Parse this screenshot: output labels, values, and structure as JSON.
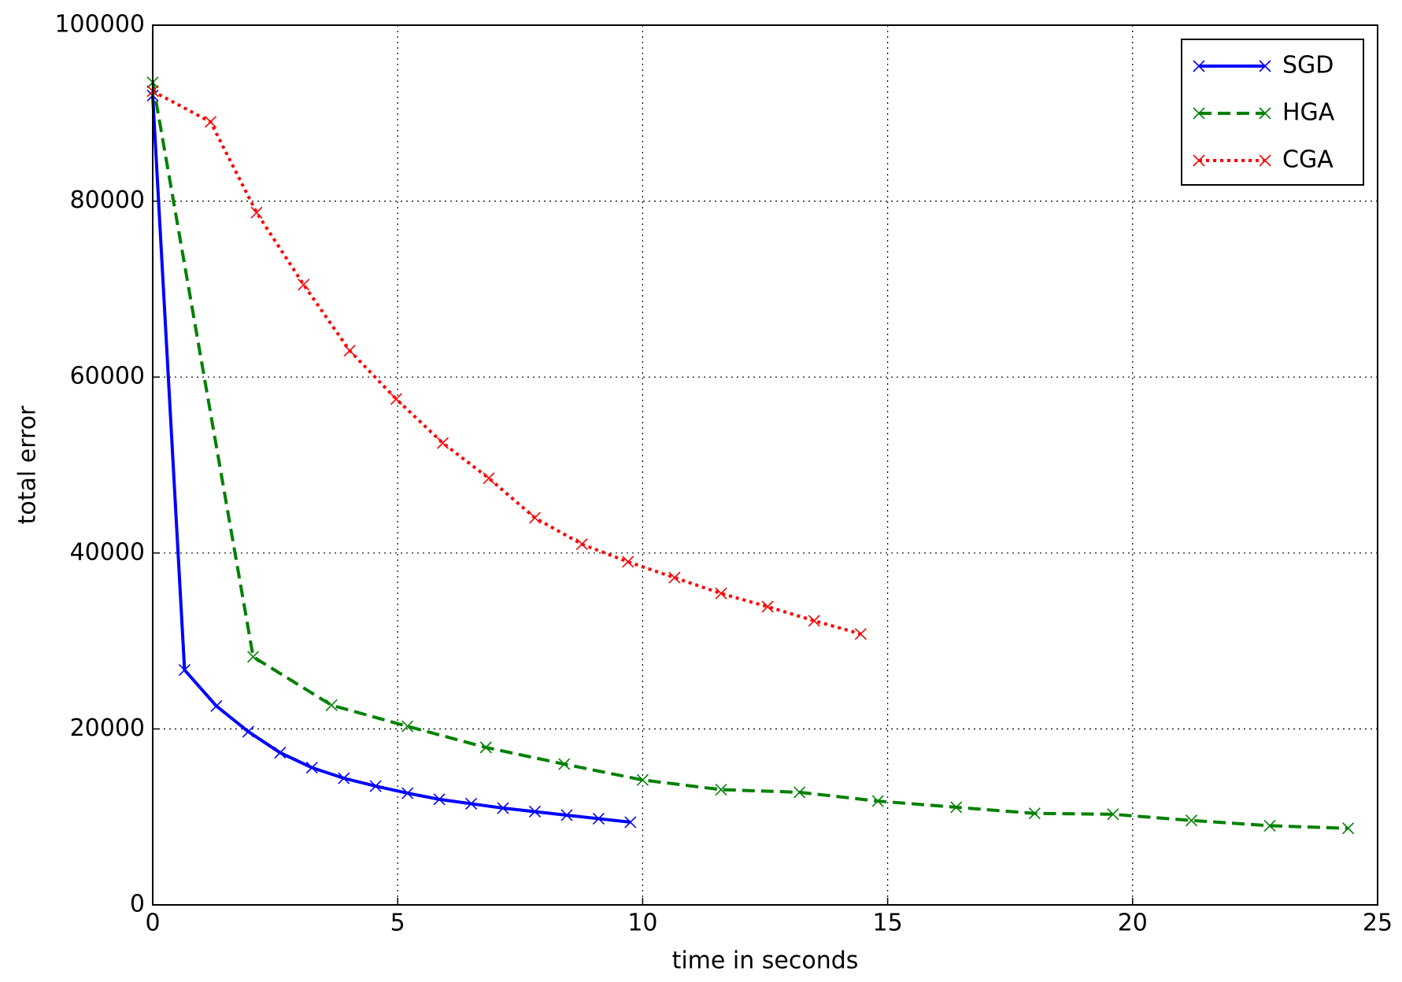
{
  "chart_data": {
    "type": "line",
    "xlabel": "time in seconds",
    "ylabel": "total error",
    "xlim": [
      0,
      25
    ],
    "xticks": [
      0,
      5,
      10,
      15,
      20,
      25
    ],
    "ylim": [
      0,
      100000
    ],
    "yticks": [
      0,
      20000,
      40000,
      60000,
      80000,
      100000
    ],
    "grid": true,
    "legend": "upper right",
    "marker": "x",
    "series": [
      {
        "name": "SGD",
        "color": "#0000ff",
        "linestyle": "solid",
        "x": [
          0,
          0.65,
          1.3,
          1.95,
          2.6,
          3.25,
          3.9,
          4.55,
          5.2,
          5.85,
          6.5,
          7.15,
          7.8,
          8.45,
          9.1,
          9.75
        ],
        "values": [
          92000,
          26700,
          22600,
          19700,
          17300,
          15600,
          14400,
          13500,
          12700,
          12000,
          11500,
          11000,
          10600,
          10200,
          9800,
          9400
        ]
      },
      {
        "name": "HGA",
        "color": "#008000",
        "linestyle": "dashed",
        "x": [
          0,
          2.05,
          3.65,
          5.2,
          6.8,
          8.4,
          10.0,
          11.6,
          13.2,
          14.8,
          16.4,
          18.0,
          19.6,
          21.2,
          22.8,
          24.4
        ],
        "values": [
          93500,
          28200,
          22700,
          20300,
          17900,
          16000,
          14200,
          13100,
          12800,
          11800,
          11100,
          10400,
          10300,
          9600,
          9000,
          8700
        ]
      },
      {
        "name": "CGA",
        "color": "#ff0000",
        "linestyle": "dotted",
        "x": [
          0,
          1.18,
          2.12,
          3.08,
          4.02,
          4.97,
          5.92,
          6.86,
          7.8,
          8.76,
          9.7,
          10.65,
          11.6,
          12.55,
          13.5,
          14.45
        ],
        "values": [
          92500,
          89000,
          78700,
          70500,
          63000,
          57500,
          52500,
          48500,
          44000,
          41000,
          39000,
          37200,
          35400,
          33900,
          32300,
          30800
        ]
      }
    ]
  }
}
